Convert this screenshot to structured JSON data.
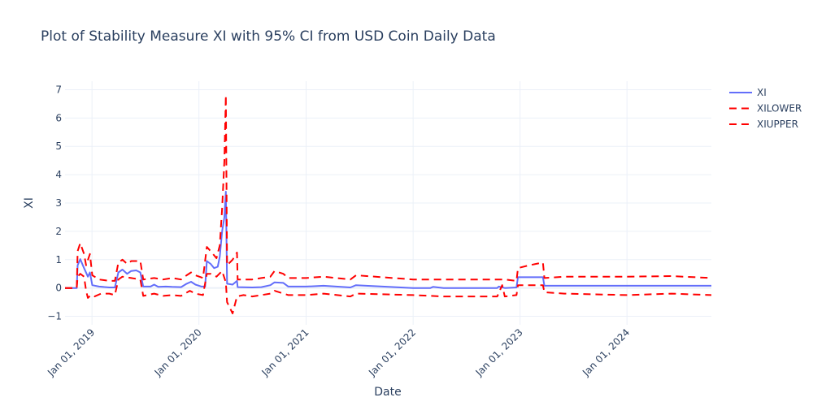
{
  "chart_data": {
    "type": "line",
    "title": "Plot of Stability Measure XI with 95% CI from USD Coin Daily Data",
    "xlabel": "Date",
    "ylabel": "XI",
    "xlim": [
      "2018-10-01",
      "2024-10-15"
    ],
    "ylim": [
      -1.3,
      7.3
    ],
    "y_ticks": [
      -1,
      0,
      1,
      2,
      3,
      4,
      5,
      6,
      7
    ],
    "x_ticks": [
      {
        "date": "2019-01-01",
        "label": "Jan 01, 2019"
      },
      {
        "date": "2020-01-01",
        "label": "Jan 01, 2020"
      },
      {
        "date": "2021-01-01",
        "label": "Jan 01, 2021"
      },
      {
        "date": "2022-01-01",
        "label": "Jan 01, 2022"
      },
      {
        "date": "2023-01-01",
        "label": "Jan 01, 2023"
      },
      {
        "date": "2024-01-01",
        "label": "Jan 01, 2024"
      }
    ],
    "grid": true,
    "legend_position": "top-right",
    "series": [
      {
        "name": "XI",
        "color": "#636efa",
        "dash": "solid",
        "points": [
          [
            "2018-10-01",
            0
          ],
          [
            "2018-11-10",
            0
          ],
          [
            "2018-11-13",
            0.8
          ],
          [
            "2018-11-22",
            1.02
          ],
          [
            "2018-12-05",
            0.7
          ],
          [
            "2018-12-18",
            0.4
          ],
          [
            "2018-12-25",
            0.55
          ],
          [
            "2019-01-02",
            0.1
          ],
          [
            "2019-01-25",
            0.05
          ],
          [
            "2019-03-01",
            0.02
          ],
          [
            "2019-03-20",
            0.02
          ],
          [
            "2019-04-01",
            0.55
          ],
          [
            "2019-04-15",
            0.65
          ],
          [
            "2019-05-01",
            0.5
          ],
          [
            "2019-05-15",
            0.6
          ],
          [
            "2019-06-01",
            0.62
          ],
          [
            "2019-06-15",
            0.55
          ],
          [
            "2019-06-25",
            0.05
          ],
          [
            "2019-07-20",
            0.05
          ],
          [
            "2019-08-01",
            0.12
          ],
          [
            "2019-08-15",
            0.04
          ],
          [
            "2019-09-10",
            0.05
          ],
          [
            "2019-10-01",
            0.04
          ],
          [
            "2019-11-01",
            0.03
          ],
          [
            "2019-11-20",
            0.15
          ],
          [
            "2019-12-05",
            0.22
          ],
          [
            "2019-12-20",
            0.12
          ],
          [
            "2020-01-10",
            0.05
          ],
          [
            "2020-01-22",
            0.05
          ],
          [
            "2020-01-28",
            0.95
          ],
          [
            "2020-02-10",
            0.85
          ],
          [
            "2020-02-22",
            0.7
          ],
          [
            "2020-03-05",
            0.75
          ],
          [
            "2020-03-12",
            1.1
          ],
          [
            "2020-03-20",
            2.0
          ],
          [
            "2020-03-28",
            2.5
          ],
          [
            "2020-04-02",
            3.4
          ],
          [
            "2020-04-06",
            0.15
          ],
          [
            "2020-04-25",
            0.12
          ],
          [
            "2020-05-10",
            0.25
          ],
          [
            "2020-05-12",
            0.03
          ],
          [
            "2020-07-01",
            0.02
          ],
          [
            "2020-08-01",
            0.03
          ],
          [
            "2020-09-01",
            0.1
          ],
          [
            "2020-09-15",
            0.2
          ],
          [
            "2020-10-15",
            0.18
          ],
          [
            "2020-11-01",
            0.05
          ],
          [
            "2021-01-01",
            0.05
          ],
          [
            "2021-03-01",
            0.08
          ],
          [
            "2021-06-01",
            0.02
          ],
          [
            "2021-06-20",
            0.1
          ],
          [
            "2022-01-01",
            0.0
          ],
          [
            "2022-03-01",
            0.0
          ],
          [
            "2022-03-10",
            0.04
          ],
          [
            "2022-04-15",
            0.0
          ],
          [
            "2022-10-15",
            0.0
          ],
          [
            "2022-10-20",
            0.05
          ],
          [
            "2022-11-10",
            0.0
          ],
          [
            "2022-12-20",
            0.02
          ],
          [
            "2022-12-25",
            0.38
          ],
          [
            "2023-03-20",
            0.38
          ],
          [
            "2023-03-25",
            0.08
          ],
          [
            "2024-10-15",
            0.08
          ]
        ]
      },
      {
        "name": "XILOWER",
        "color": "#ff0000",
        "dash": "dash",
        "points": [
          [
            "2018-10-01",
            0
          ],
          [
            "2018-11-10",
            0
          ],
          [
            "2018-11-13",
            0.4
          ],
          [
            "2018-11-22",
            0.5
          ],
          [
            "2018-12-05",
            0.4
          ],
          [
            "2018-12-12",
            -0.1
          ],
          [
            "2018-12-18",
            -0.35
          ],
          [
            "2018-12-28",
            -0.25
          ],
          [
            "2019-01-10",
            -0.3
          ],
          [
            "2019-02-01",
            -0.2
          ],
          [
            "2019-03-01",
            -0.2
          ],
          [
            "2019-03-20",
            -0.25
          ],
          [
            "2019-04-01",
            0.3
          ],
          [
            "2019-04-15",
            0.4
          ],
          [
            "2019-05-15",
            0.35
          ],
          [
            "2019-06-15",
            0.3
          ],
          [
            "2019-06-25",
            -0.28
          ],
          [
            "2019-08-01",
            -0.2
          ],
          [
            "2019-09-01",
            -0.28
          ],
          [
            "2019-10-01",
            -0.25
          ],
          [
            "2019-11-01",
            -0.28
          ],
          [
            "2019-12-01",
            -0.1
          ],
          [
            "2019-12-20",
            -0.2
          ],
          [
            "2020-01-15",
            -0.25
          ],
          [
            "2020-01-28",
            0.5
          ],
          [
            "2020-02-10",
            0.5
          ],
          [
            "2020-03-01",
            0.4
          ],
          [
            "2020-03-20",
            0.6
          ],
          [
            "2020-04-02",
            0.2
          ],
          [
            "2020-04-06",
            -0.5
          ],
          [
            "2020-04-25",
            -0.9
          ],
          [
            "2020-05-10",
            -0.3
          ],
          [
            "2020-06-01",
            -0.25
          ],
          [
            "2020-07-01",
            -0.3
          ],
          [
            "2020-08-01",
            -0.25
          ],
          [
            "2020-09-01",
            -0.2
          ],
          [
            "2020-09-15",
            -0.1
          ],
          [
            "2020-11-01",
            -0.25
          ],
          [
            "2021-01-01",
            -0.25
          ],
          [
            "2021-03-01",
            -0.2
          ],
          [
            "2021-06-01",
            -0.3
          ],
          [
            "2021-06-20",
            -0.2
          ],
          [
            "2022-01-01",
            -0.25
          ],
          [
            "2022-04-15",
            -0.3
          ],
          [
            "2022-10-15",
            -0.3
          ],
          [
            "2022-11-01",
            0.1
          ],
          [
            "2022-11-10",
            -0.3
          ],
          [
            "2022-12-20",
            -0.25
          ],
          [
            "2022-12-25",
            0.1
          ],
          [
            "2023-03-20",
            0.1
          ],
          [
            "2023-03-25",
            -0.15
          ],
          [
            "2023-06-01",
            -0.2
          ],
          [
            "2024-01-01",
            -0.25
          ],
          [
            "2024-06-01",
            -0.2
          ],
          [
            "2024-10-15",
            -0.25
          ]
        ]
      },
      {
        "name": "XIUPPER",
        "color": "#ff0000",
        "dash": "dash",
        "points": [
          [
            "2018-10-01",
            0
          ],
          [
            "2018-11-10",
            0
          ],
          [
            "2018-11-13",
            1.3
          ],
          [
            "2018-11-22",
            1.58
          ],
          [
            "2018-12-05",
            1.2
          ],
          [
            "2018-12-12",
            0.8
          ],
          [
            "2018-12-25",
            1.2
          ],
          [
            "2019-01-02",
            0.45
          ],
          [
            "2019-01-25",
            0.3
          ],
          [
            "2019-03-01",
            0.25
          ],
          [
            "2019-03-20",
            0.25
          ],
          [
            "2019-04-01",
            0.9
          ],
          [
            "2019-04-15",
            1.0
          ],
          [
            "2019-05-01",
            0.85
          ],
          [
            "2019-05-15",
            0.95
          ],
          [
            "2019-06-15",
            0.95
          ],
          [
            "2019-06-25",
            0.3
          ],
          [
            "2019-08-01",
            0.35
          ],
          [
            "2019-09-01",
            0.3
          ],
          [
            "2019-10-01",
            0.35
          ],
          [
            "2019-11-01",
            0.3
          ],
          [
            "2019-11-20",
            0.45
          ],
          [
            "2019-12-05",
            0.55
          ],
          [
            "2019-12-20",
            0.45
          ],
          [
            "2020-01-15",
            0.35
          ],
          [
            "2020-01-28",
            1.45
          ],
          [
            "2020-02-10",
            1.3
          ],
          [
            "2020-03-01",
            1.05
          ],
          [
            "2020-03-12",
            1.5
          ],
          [
            "2020-03-20",
            2.8
          ],
          [
            "2020-03-28",
            4.5
          ],
          [
            "2020-04-02",
            6.8
          ],
          [
            "2020-04-06",
            0.8
          ],
          [
            "2020-04-25",
            1.0
          ],
          [
            "2020-05-10",
            1.25
          ],
          [
            "2020-05-12",
            0.3
          ],
          [
            "2020-07-01",
            0.3
          ],
          [
            "2020-08-01",
            0.35
          ],
          [
            "2020-09-01",
            0.4
          ],
          [
            "2020-09-15",
            0.6
          ],
          [
            "2020-10-15",
            0.5
          ],
          [
            "2020-11-01",
            0.35
          ],
          [
            "2021-01-01",
            0.35
          ],
          [
            "2021-03-01",
            0.4
          ],
          [
            "2021-06-01",
            0.3
          ],
          [
            "2021-06-20",
            0.45
          ],
          [
            "2022-01-01",
            0.3
          ],
          [
            "2022-04-15",
            0.3
          ],
          [
            "2022-10-15",
            0.3
          ],
          [
            "2022-11-10",
            0.3
          ],
          [
            "2022-12-20",
            0.25
          ],
          [
            "2022-12-25",
            0.7
          ],
          [
            "2023-02-01",
            0.8
          ],
          [
            "2023-03-20",
            0.9
          ],
          [
            "2023-03-25",
            0.35
          ],
          [
            "2023-06-01",
            0.4
          ],
          [
            "2024-01-01",
            0.4
          ],
          [
            "2024-06-01",
            0.42
          ],
          [
            "2024-10-15",
            0.35
          ]
        ]
      }
    ]
  }
}
